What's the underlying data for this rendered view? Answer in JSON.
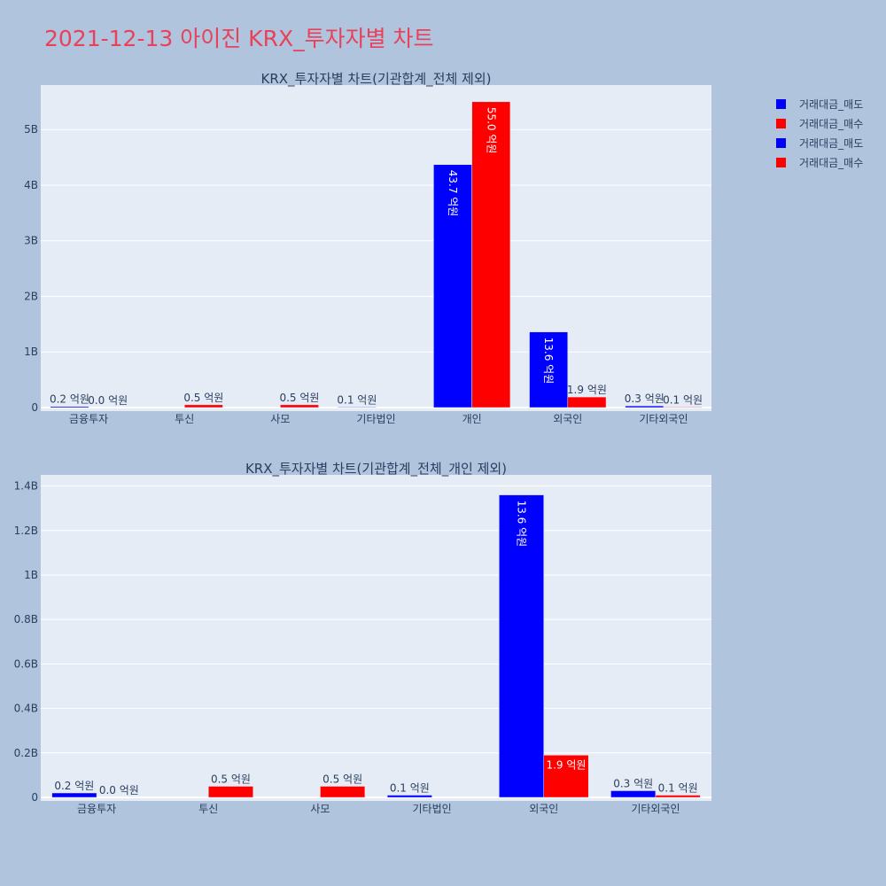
{
  "title": "2021-12-13 아이진 KRX_투자자별 차트",
  "legend": [
    {
      "label": "거래대금_매도",
      "color": "#0000ff"
    },
    {
      "label": "거래대금_매수",
      "color": "#ff0000"
    },
    {
      "label": "거래대금_매도",
      "color": "#0000ff"
    },
    {
      "label": "거래대금_매수",
      "color": "#ff0000"
    }
  ],
  "chart_data": [
    {
      "type": "bar",
      "title": "KRX_투자자별 차트(기관합계_전체 제외)",
      "categories": [
        "금융투자",
        "투신",
        "사모",
        "기타법인",
        "개인",
        "외국인",
        "기타외국인"
      ],
      "ylim": [
        0,
        5.8
      ],
      "yticks": [
        0,
        1,
        2,
        3,
        4,
        5
      ],
      "ytick_labels": [
        "0",
        "1B",
        "2B",
        "3B",
        "4B",
        "5B"
      ],
      "grid": true,
      "legend_position": "top-right",
      "series": [
        {
          "name": "거래대금_매도",
          "color": "#0000ff",
          "values": [
            0.02,
            0,
            0,
            0.01,
            4.37,
            1.36,
            0.03
          ],
          "labels": [
            "0.2 억원",
            "",
            "",
            "0.1 억원",
            "43.7 억원",
            "13.6 억원",
            "0.3 억원"
          ]
        },
        {
          "name": "거래대금_매수",
          "color": "#ff0000",
          "values": [
            0.0,
            0.05,
            0.05,
            0,
            5.5,
            0.19,
            0.01
          ],
          "labels": [
            "0.0 억원",
            "0.5 억원",
            "0.5 억원",
            "",
            "55.0 억원",
            "1.9 억원",
            "0.1 억원"
          ]
        }
      ]
    },
    {
      "type": "bar",
      "title": "KRX_투자자별 차트(기관합계_전체_개인 제외)",
      "categories": [
        "금융투자",
        "투신",
        "사모",
        "기타법인",
        "외국인",
        "기타외국인"
      ],
      "ylim": [
        0,
        1.45
      ],
      "yticks": [
        0,
        0.2,
        0.4,
        0.6,
        0.8,
        1.0,
        1.2,
        1.4
      ],
      "ytick_labels": [
        "0",
        "0.2B",
        "0.4B",
        "0.6B",
        "0.8B",
        "1B",
        "1.2B",
        "1.4B"
      ],
      "grid": true,
      "series": [
        {
          "name": "거래대금_매도",
          "color": "#0000ff",
          "values": [
            0.02,
            0,
            0,
            0.01,
            1.36,
            0.03
          ],
          "labels": [
            "0.2 억원",
            "",
            "",
            "0.1 억원",
            "13.6 억원",
            "0.3 억원"
          ]
        },
        {
          "name": "거래대금_매수",
          "color": "#ff0000",
          "values": [
            0.0,
            0.05,
            0.05,
            0,
            0.19,
            0.01
          ],
          "labels": [
            "0.0 억원",
            "0.5 억원",
            "0.5 억원",
            "",
            "1.9 억원",
            "0.1 억원"
          ]
        }
      ]
    }
  ]
}
